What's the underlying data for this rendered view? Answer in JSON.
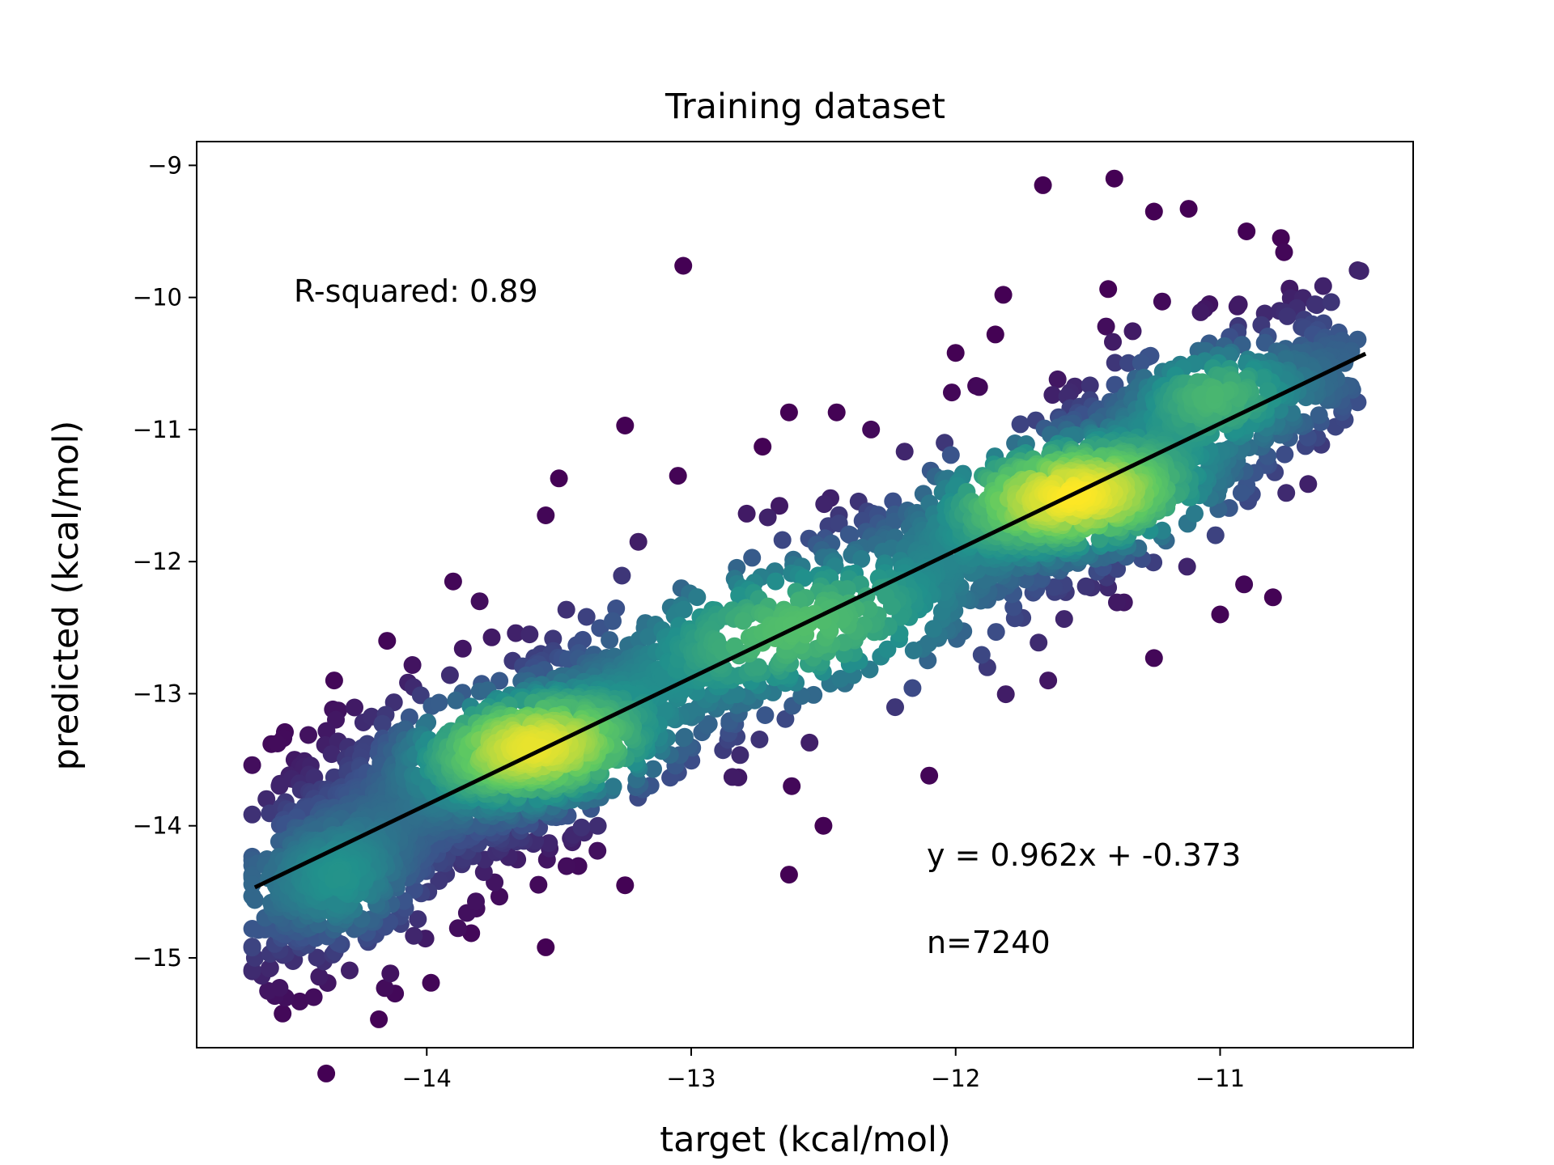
{
  "chart_data": {
    "type": "scatter",
    "title": "Training dataset",
    "xlabel": "target (kcal/mol)",
    "ylabel": "predicted (kcal/mol)",
    "xlim": [
      -14.87,
      -10.27
    ],
    "ylim": [
      -15.68,
      -8.82
    ],
    "xticks": [
      -14,
      -13,
      -12,
      -11
    ],
    "yticks": [
      -9,
      -10,
      -11,
      -12,
      -13,
      -14,
      -15
    ],
    "xtick_labels": [
      "−14",
      "−13",
      "−12",
      "−11"
    ],
    "ytick_labels": [
      "−9",
      "−10",
      "−11",
      "−12",
      "−13",
      "−14",
      "−15"
    ],
    "grid": false,
    "legend": "none",
    "colormap": "viridis",
    "colormap_colors": [
      "#440154",
      "#3b528b",
      "#21918c",
      "#5ec962",
      "#fde725"
    ],
    "fit_line": {
      "slope": 0.962,
      "intercept": -0.373,
      "x_range": [
        -14.65,
        -10.45
      ],
      "color": "#000000"
    },
    "annotations": {
      "r_squared": "R-squared: 0.89",
      "equation": "y = 0.962x + -0.373",
      "n": "n=7240"
    },
    "density_clusters": [
      {
        "cx": -13.6,
        "cy": -13.4,
        "sx": 0.3,
        "sy": 0.28,
        "peak": 0.95
      },
      {
        "cx": -11.55,
        "cy": -11.5,
        "sx": 0.33,
        "sy": 0.28,
        "peak": 1.0
      },
      {
        "cx": -12.6,
        "cy": -12.5,
        "sx": 0.5,
        "sy": 0.4,
        "peak": 0.55
      },
      {
        "cx": -14.3,
        "cy": -14.5,
        "sx": 0.18,
        "sy": 0.32,
        "peak": 0.35
      },
      {
        "cx": -11.05,
        "cy": -10.7,
        "sx": 0.22,
        "sy": 0.25,
        "peak": 0.55
      }
    ],
    "outliers": [
      [
        -11.67,
        -9.15
      ],
      [
        -11.4,
        -9.1
      ],
      [
        -13.03,
        -9.76
      ],
      [
        -11.25,
        -9.35
      ],
      [
        -10.9,
        -9.5
      ],
      [
        -10.77,
        -9.55
      ],
      [
        -10.47,
        -9.8
      ],
      [
        -11.82,
        -9.98
      ],
      [
        -12.63,
        -10.87
      ],
      [
        -12.45,
        -10.87
      ],
      [
        -12.73,
        -11.13
      ],
      [
        -13.25,
        -10.97
      ],
      [
        -13.5,
        -11.37
      ],
      [
        -13.55,
        -11.65
      ],
      [
        -13.8,
        -12.3
      ],
      [
        -13.9,
        -12.15
      ],
      [
        -14.35,
        -12.9
      ],
      [
        -14.15,
        -12.6
      ],
      [
        -14.5,
        -13.5
      ],
      [
        -14.3,
        -13.6
      ],
      [
        -14.05,
        -12.95
      ],
      [
        -12.82,
        -13.15
      ],
      [
        -12.63,
        -14.37
      ],
      [
        -12.5,
        -14.0
      ],
      [
        -12.1,
        -13.62
      ],
      [
        -11.25,
        -12.73
      ],
      [
        -10.8,
        -12.27
      ],
      [
        -10.75,
        -11.48
      ],
      [
        -14.48,
        -15.33
      ],
      [
        -14.6,
        -15.25
      ],
      [
        -14.65,
        -15.0
      ],
      [
        -14.12,
        -15.27
      ],
      [
        -13.55,
        -14.92
      ],
      [
        -13.25,
        -14.45
      ],
      [
        -12.62,
        -13.7
      ],
      [
        -11.65,
        -12.9
      ],
      [
        -11.88,
        -12.8
      ],
      [
        -12.0,
        -10.42
      ],
      [
        -11.85,
        -10.28
      ],
      [
        -11.38,
        -11.05
      ],
      [
        -10.9,
        -10.5
      ],
      [
        -13.05,
        -11.35
      ],
      [
        -14.55,
        -14.7
      ],
      [
        -14.42,
        -14.85
      ],
      [
        -13.2,
        -11.85
      ],
      [
        -12.32,
        -11.0
      ],
      [
        -11.0,
        -12.4
      ],
      [
        -10.5,
        -10.7
      ]
    ]
  }
}
